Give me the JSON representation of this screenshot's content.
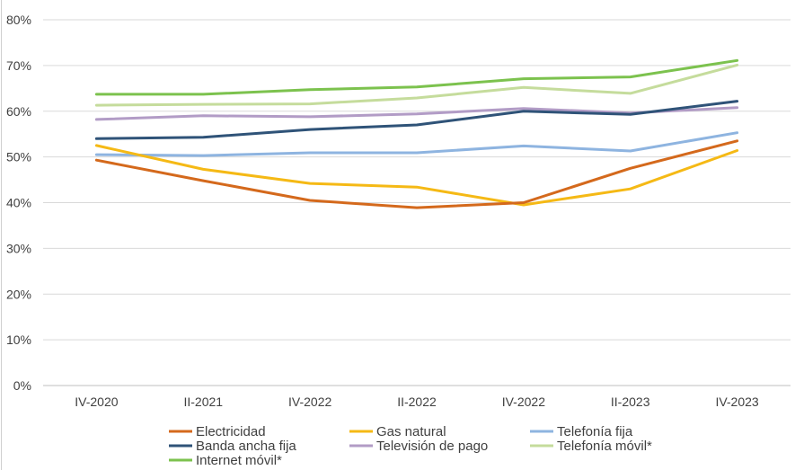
{
  "chart_data": {
    "type": "line",
    "title": "",
    "xlabel": "",
    "ylabel": "",
    "categories": [
      "IV-2020",
      "II-2021",
      "IV-2022",
      "II-2022",
      "IV-2022",
      "II-2023",
      "IV-2023"
    ],
    "ylim": [
      0,
      80
    ],
    "y_ticks": [
      "0%",
      "10%",
      "20%",
      "30%",
      "40%",
      "50%",
      "60%",
      "70%",
      "80%"
    ],
    "grid": true,
    "legend": "bottom",
    "series": [
      {
        "name": "Electricidad",
        "color": "#d4691c",
        "values": [
          49.3,
          44.8,
          40.5,
          38.9,
          40.0,
          47.5,
          53.5
        ]
      },
      {
        "name": "Gas natural",
        "color": "#f5b915",
        "values": [
          52.5,
          47.3,
          44.2,
          43.4,
          39.5,
          43.0,
          51.4
        ]
      },
      {
        "name": "Telefonía fija",
        "color": "#8eb4e0",
        "values": [
          50.5,
          50.3,
          50.9,
          50.9,
          52.4,
          51.3,
          55.3
        ]
      },
      {
        "name": "Banda ancha fija",
        "color": "#2f5378",
        "values": [
          54.0,
          54.3,
          56.0,
          57.0,
          60.0,
          59.3,
          62.2
        ]
      },
      {
        "name": "Televisión de pago",
        "color": "#b29cc6",
        "values": [
          58.2,
          59.0,
          58.8,
          59.4,
          60.6,
          59.6,
          60.8
        ]
      },
      {
        "name": "Telefonía móvil*",
        "color": "#c5dc9c",
        "values": [
          61.3,
          61.5,
          61.6,
          62.9,
          65.2,
          63.9,
          70.1
        ]
      },
      {
        "name": "Internet móvil*",
        "color": "#7cc24e",
        "values": [
          63.7,
          63.7,
          64.7,
          65.3,
          67.1,
          67.5,
          71.1
        ]
      }
    ]
  }
}
